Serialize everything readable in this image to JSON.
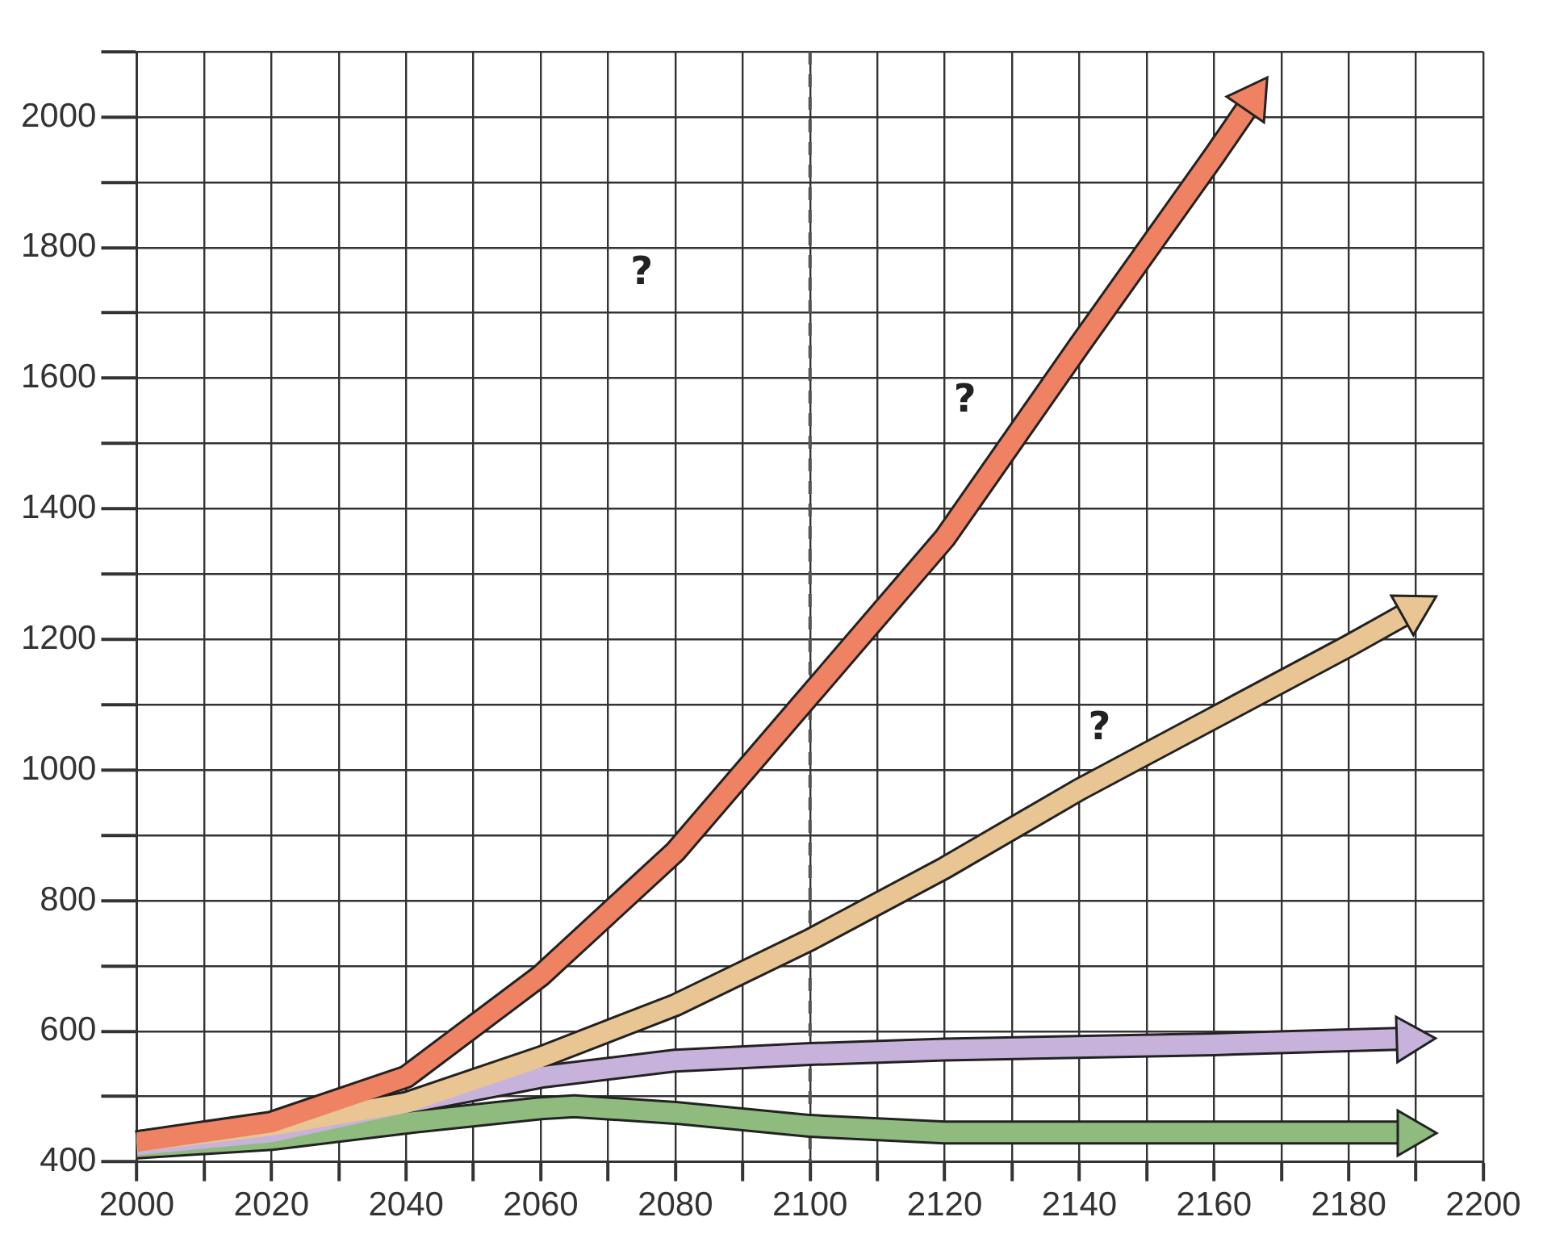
{
  "chart_data": {
    "type": "line",
    "series": [
      {
        "color": "#ee8262",
        "x": [
          2000,
          2020,
          2040,
          2060,
          2080,
          2100,
          2120,
          2140,
          2160,
          2168
        ],
        "values": [
          430,
          460,
          530,
          685,
          875,
          1115,
          1355,
          1650,
          1940,
          2060
        ]
      },
      {
        "color": "#e8c592",
        "x": [
          2000,
          2020,
          2040,
          2060,
          2080,
          2100,
          2120,
          2140,
          2160,
          2180,
          2193
        ],
        "values": [
          430,
          455,
          490,
          560,
          640,
          740,
          850,
          970,
          1080,
          1190,
          1265
        ]
      },
      {
        "color": "#c6b2da",
        "x": [
          2000,
          2020,
          2040,
          2060,
          2080,
          2100,
          2120,
          2160,
          2193
        ],
        "values": [
          425,
          445,
          490,
          530,
          555,
          565,
          572,
          580,
          590
        ]
      },
      {
        "color": "#8fbb7e",
        "x": [
          2000,
          2020,
          2040,
          2060,
          2065,
          2080,
          2100,
          2120,
          2160,
          2193
        ],
        "values": [
          422,
          435,
          460,
          482,
          485,
          475,
          455,
          445,
          445,
          445
        ]
      }
    ],
    "xlim": [
      2000,
      2200
    ],
    "xticks": [
      2000,
      {
        "value": 2010,
        "label": null
      },
      2020,
      {
        "value": 2030,
        "label": null
      },
      2040,
      {
        "value": 2050,
        "label": null
      },
      2060,
      {
        "value": 2070,
        "label": null
      },
      2080,
      {
        "value": 2090,
        "label": null
      },
      2100,
      {
        "value": 2110,
        "label": null
      },
      2120,
      {
        "value": 2130,
        "label": null
      },
      2140,
      {
        "value": 2150,
        "label": null
      },
      2160,
      {
        "value": 2170,
        "label": null
      },
      2180,
      {
        "value": 2190,
        "label": null
      },
      2200
    ],
    "ylim": [
      400,
      2100
    ],
    "yticks": [
      400,
      {
        "value": 500,
        "label": null
      },
      600,
      {
        "value": 700,
        "label": null
      },
      800,
      {
        "value": 900,
        "label": null
      },
      1000,
      {
        "value": 1100,
        "label": null
      },
      1200,
      {
        "value": 1300,
        "label": null
      },
      1400,
      {
        "value": 1500,
        "label": null
      },
      1600,
      {
        "value": 1700,
        "label": null
      },
      1800,
      {
        "value": 1900,
        "label": null
      },
      2000,
      {
        "value": 2100,
        "label": null
      }
    ],
    "grid": true,
    "legend": false,
    "marker": "none",
    "line_style": "solid",
    "ref_lines": [
      {
        "axis": "x",
        "value": 2100,
        "color": "#555555",
        "line_style": "dashed"
      }
    ],
    "annotations": [
      "?",
      "?",
      "?"
    ]
  }
}
